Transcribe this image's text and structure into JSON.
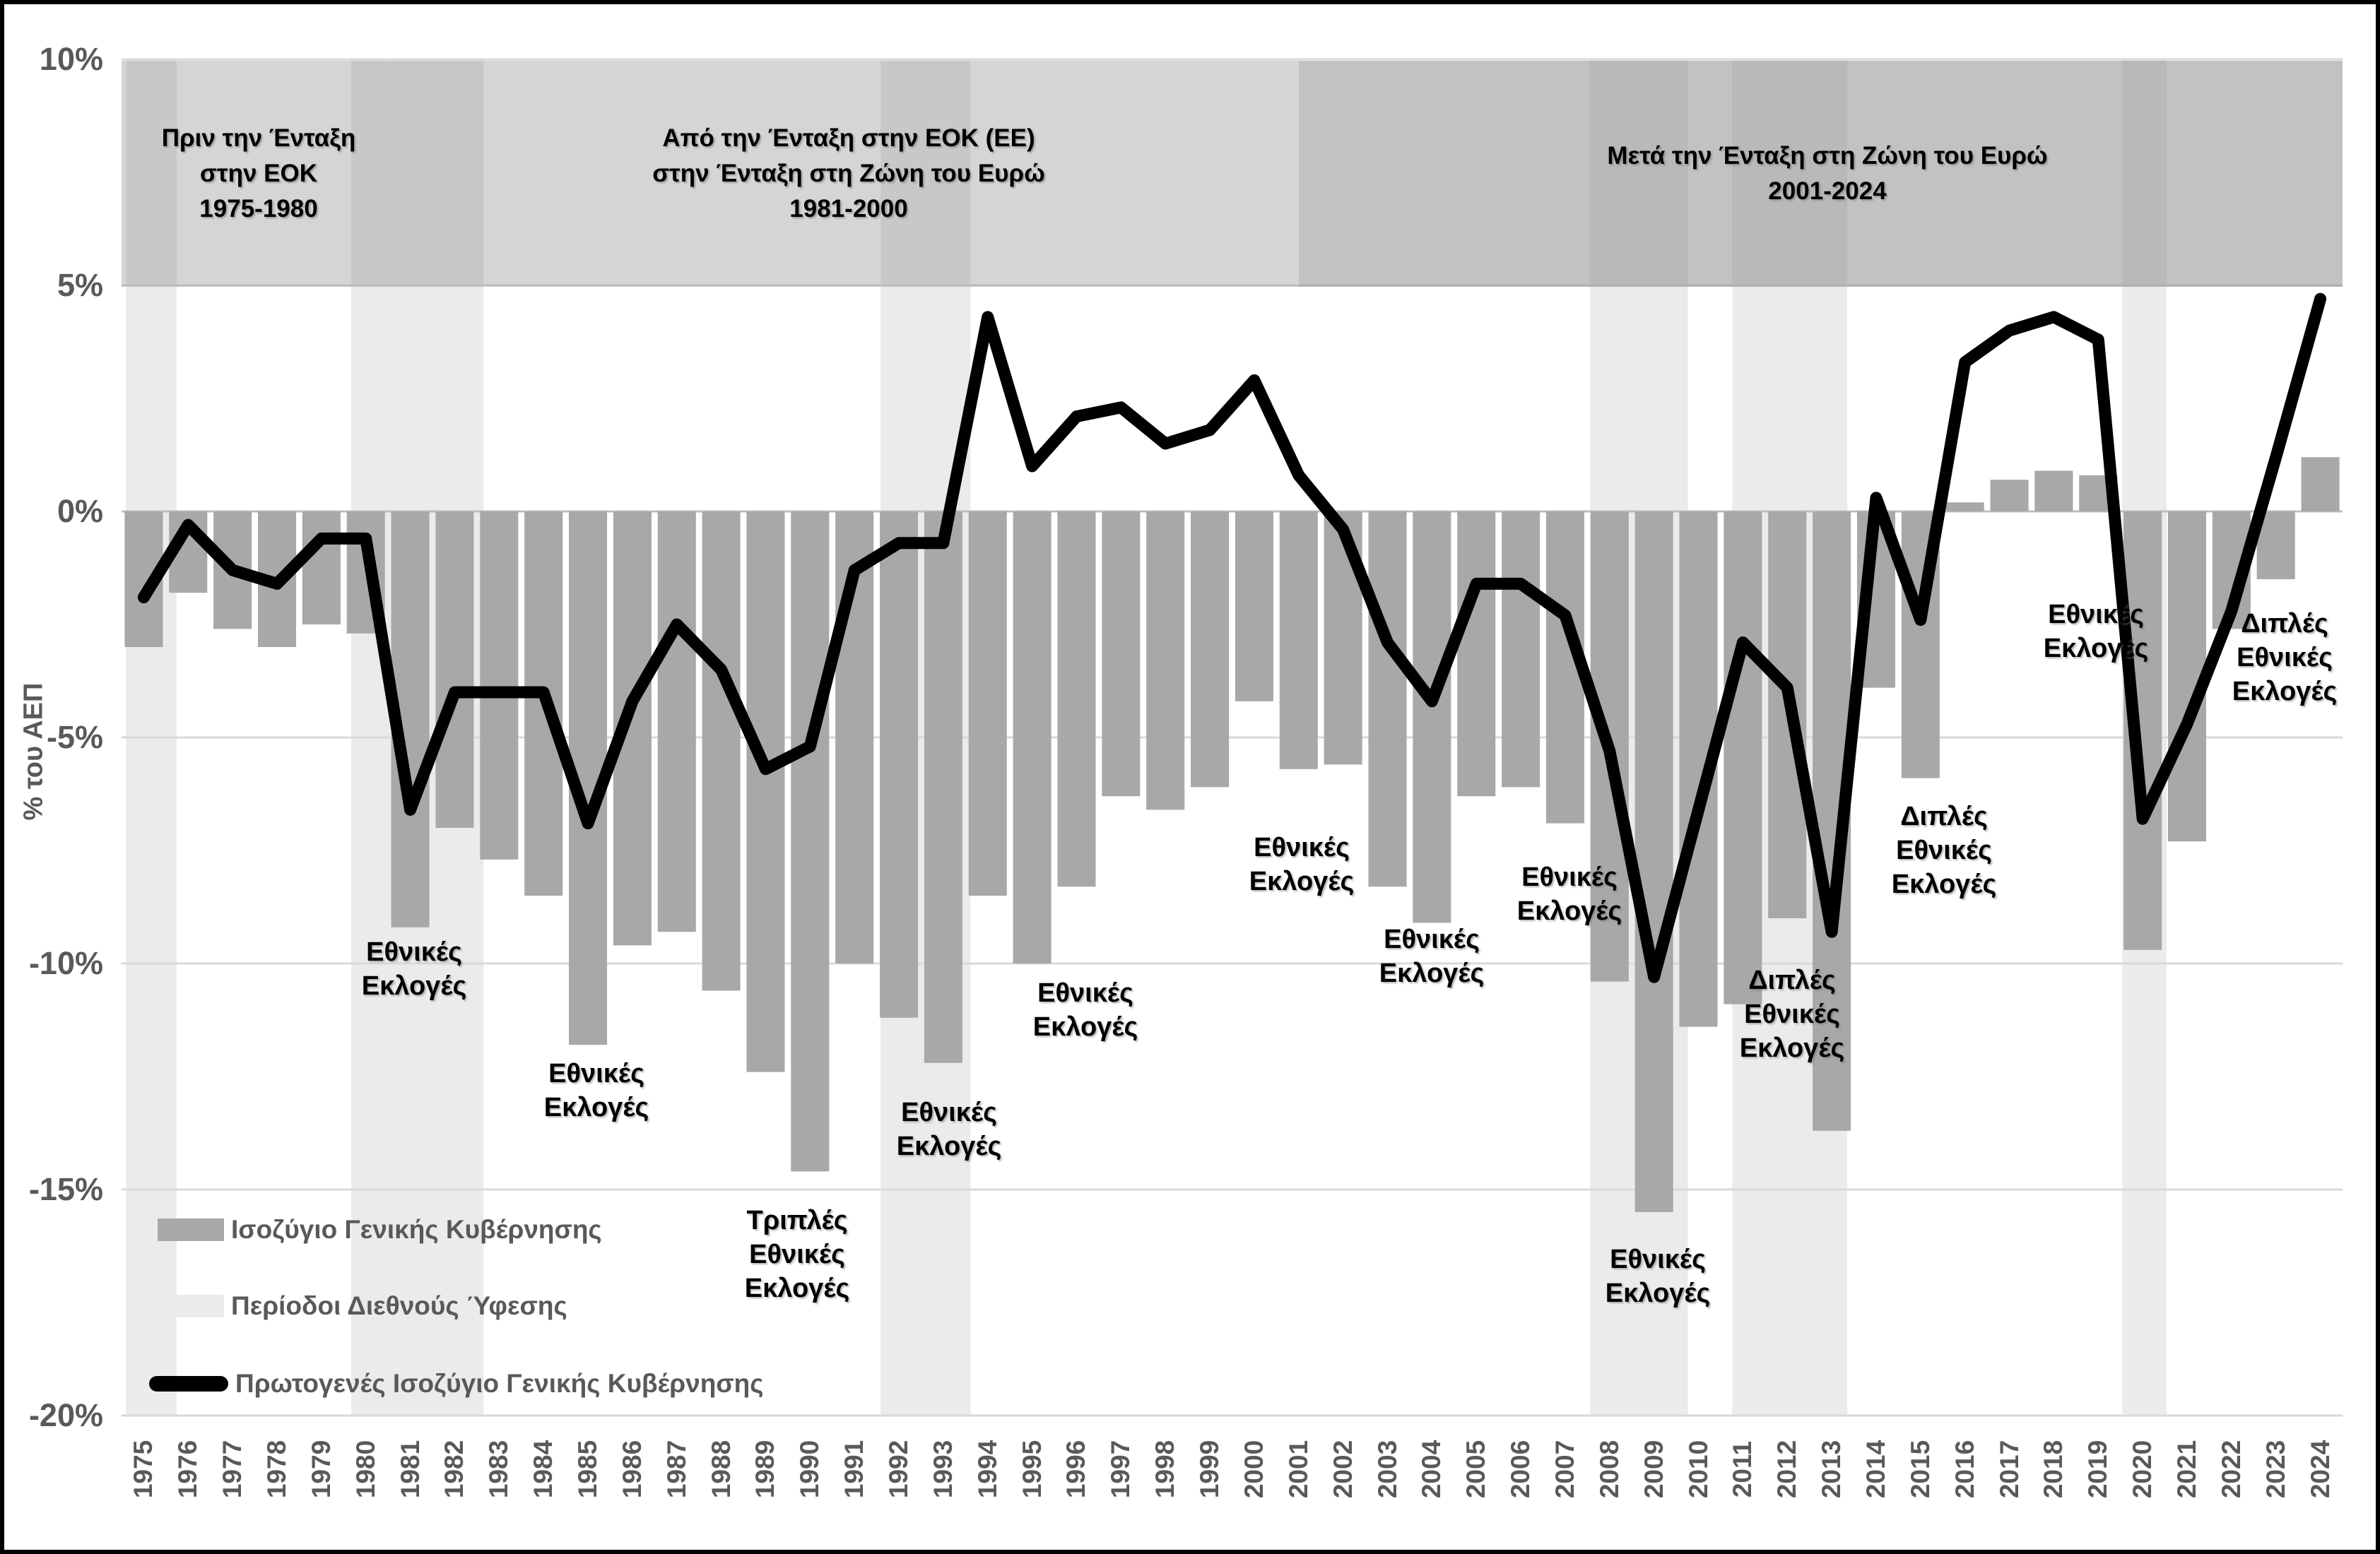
{
  "chart_data": {
    "type": "bar",
    "description": "Greek general government balance (bars) and primary balance (line), % of GDP, 1975-2024, with recession shading and election annotations",
    "ylabel": "% του ΑΕΠ",
    "ylim": [
      -20,
      10
    ],
    "yticks": [
      10,
      5,
      0,
      -5,
      -10,
      -15,
      -20
    ],
    "ytick_labels": [
      "10%",
      "5%",
      "0%",
      "-5%",
      "-10%",
      "-15%",
      "-20%"
    ],
    "x": [
      1975,
      1976,
      1977,
      1978,
      1979,
      1980,
      1981,
      1982,
      1983,
      1984,
      1985,
      1986,
      1987,
      1988,
      1989,
      1990,
      1991,
      1992,
      1993,
      1994,
      1995,
      1996,
      1997,
      1998,
      1999,
      2000,
      2001,
      2002,
      2003,
      2004,
      2005,
      2006,
      2007,
      2008,
      2009,
      2010,
      2011,
      2012,
      2013,
      2014,
      2015,
      2016,
      2017,
      2018,
      2019,
      2020,
      2021,
      2022,
      2023,
      2024
    ],
    "series": [
      {
        "name": "Ισοζύγιο Γενικής Κυβέρνησης",
        "type": "bar",
        "color": "#a8a8a8",
        "values": [
          -3.0,
          -1.8,
          -2.6,
          -3.0,
          -2.5,
          -2.7,
          -9.2,
          -7.0,
          -7.7,
          -8.5,
          -11.8,
          -9.6,
          -9.3,
          -10.6,
          -12.4,
          -14.6,
          -10.0,
          -11.2,
          -12.2,
          -8.5,
          -10.0,
          -8.3,
          -6.3,
          -6.6,
          -6.1,
          -4.2,
          -5.7,
          -5.6,
          -8.3,
          -9.1,
          -6.3,
          -6.1,
          -6.9,
          -10.4,
          -15.5,
          -11.4,
          -10.9,
          -9.0,
          -13.7,
          -3.9,
          -5.9,
          0.2,
          0.7,
          0.9,
          0.8,
          -9.7,
          -7.3,
          -2.6,
          -1.5,
          1.2
        ]
      },
      {
        "name": "Πρωτογενές Ισοζύγιο Γενικής Κυβέρνησης",
        "type": "line",
        "color": "#000000",
        "values": [
          -1.9,
          -0.3,
          -1.3,
          -1.6,
          -0.6,
          -0.6,
          -6.6,
          -4.0,
          -4.0,
          -4.0,
          -6.9,
          -4.2,
          -2.5,
          -3.5,
          -5.7,
          -5.2,
          -1.3,
          -0.7,
          -0.7,
          4.3,
          1.0,
          2.1,
          2.3,
          1.5,
          1.8,
          2.9,
          0.8,
          -0.4,
          -2.9,
          -4.2,
          -1.6,
          -1.6,
          -2.3,
          -5.3,
          -10.3,
          -6.6,
          -2.9,
          -3.9,
          -9.3,
          0.3,
          -2.4,
          3.3,
          4.0,
          4.3,
          3.8,
          -6.8,
          -4.7,
          -2.2,
          1.2,
          4.7
        ]
      }
    ],
    "recession_shading": {
      "name": "Περίοδοι Διεθνούς Ύφεσης",
      "color": "#ebebeb",
      "year_ranges": [
        [
          1974.6,
          1975.74
        ],
        [
          1979.67,
          1982.65
        ],
        [
          1991.59,
          1993.61
        ],
        [
          2007.56,
          2009.76
        ],
        [
          2010.76,
          2013.35
        ],
        [
          2019.54,
          2020.54
        ]
      ]
    },
    "era_bands": [
      {
        "lines": [
          "Πριν την Ένταξη",
          "στην ΕΟΚ",
          "1975-1980"
        ],
        "from": 1974.5,
        "to": 1980.5,
        "opacity": 0.37
      },
      {
        "lines": [
          "Από την Ένταξη στην ΕΟΚ (ΕΕ)",
          "στην Ένταξη στη Ζώνη του Ευρώ",
          "1981-2000"
        ],
        "from": 1980.5,
        "to": 2001.0,
        "opacity": 0.37
      },
      {
        "lines": [
          "Μετά την Ένταξη στη Ζώνη του Ευρώ",
          "2001-2024"
        ],
        "from": 2001.0,
        "to": 2025.0,
        "opacity": 0.53
      }
    ],
    "election_annotations": [
      {
        "cx": 580,
        "top": 1318,
        "lines": [
          "Εθνικές",
          "Εκλογές"
        ]
      },
      {
        "cx": 838,
        "top": 1490,
        "lines": [
          "Εθνικές",
          "Εκλογές"
        ]
      },
      {
        "cx": 1122,
        "top": 1698,
        "lines": [
          "Τριπλές",
          "Εθνικές",
          "Εκλογές"
        ]
      },
      {
        "cx": 1337,
        "top": 1545,
        "lines": [
          "Εθνικές",
          "Εκλογές"
        ]
      },
      {
        "cx": 1530,
        "top": 1376,
        "lines": [
          "Εθνικές",
          "Εκλογές"
        ]
      },
      {
        "cx": 1836,
        "top": 1170,
        "lines": [
          "Εθνικές",
          "Εκλογές"
        ]
      },
      {
        "cx": 2020,
        "top": 1300,
        "lines": [
          "Εθνικές",
          "Εκλογές"
        ]
      },
      {
        "cx": 2215,
        "top": 1212,
        "lines": [
          "Εθνικές",
          "Εκλογές"
        ]
      },
      {
        "cx": 2340,
        "top": 1753,
        "lines": [
          "Εθνικές",
          "Εκλογές"
        ]
      },
      {
        "cx": 2530,
        "top": 1358,
        "lines": [
          "Διπλές",
          "Εθνικές",
          "Εκλογές"
        ]
      },
      {
        "cx": 2745,
        "top": 1126,
        "lines": [
          "Διπλές",
          "Εθνικές",
          "Εκλογές"
        ]
      },
      {
        "cx": 2960,
        "top": 840,
        "lines": [
          "Εθνικές",
          "Εκλογές"
        ]
      },
      {
        "cx": 3227,
        "top": 853,
        "lines": [
          "Διπλές",
          "Εθνικές",
          "Εκλογές"
        ]
      }
    ],
    "grid": true,
    "legend_position": "bottom-left"
  },
  "legend": {
    "items": [
      {
        "label": "Ισοζύγιο Γενικής Κυβέρνησης",
        "swatch": "bar"
      },
      {
        "label": "Περίοδοι Διεθνούς Ύφεσης",
        "swatch": "recession"
      },
      {
        "label": "Πρωτογενές Ισοζύγιο Γενικής Κυβέρνησης",
        "swatch": "line"
      }
    ]
  },
  "colors": {
    "bar": "#a8a8a8",
    "recession_band": "#ebebeb",
    "era_band_base": "#8c8c8c",
    "gridline": "#d9d9d9",
    "zero_line": "#bfbfbf",
    "tick_text": "#595959",
    "line": "#000000"
  }
}
